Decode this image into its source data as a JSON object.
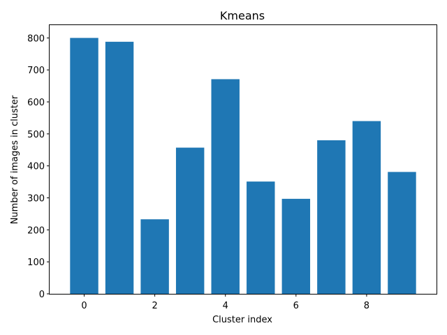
{
  "chart_data": {
    "type": "bar",
    "title": "Kmeans",
    "xlabel": "Cluster index",
    "ylabel": "Number of images in cluster",
    "categories": [
      0,
      1,
      2,
      3,
      4,
      5,
      6,
      7,
      8,
      9
    ],
    "values": [
      800,
      788,
      233,
      457,
      671,
      351,
      297,
      480,
      540,
      381
    ],
    "bar_color": "#1f77b4",
    "xlim": [
      -0.98,
      9.98
    ],
    "ylim": [
      0,
      840
    ],
    "xticks": [
      0,
      2,
      4,
      6,
      8
    ],
    "yticks": [
      0,
      100,
      200,
      300,
      400,
      500,
      600,
      700,
      800
    ],
    "grid": false,
    "legend": false
  }
}
